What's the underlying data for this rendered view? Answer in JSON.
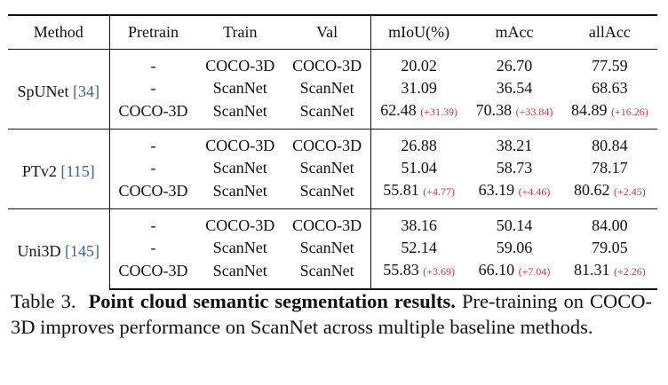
{
  "table": {
    "headers": [
      "Method",
      "Pretrain",
      "Train",
      "Val",
      "mIoU(%)",
      "mAcc",
      "allAcc"
    ],
    "groups": [
      {
        "method": "SpUNet",
        "cite": "[34]",
        "rows": [
          {
            "pretrain": "-",
            "train": "COCO-3D",
            "val": "COCO-3D",
            "miou": "20.02",
            "miou_delta": "",
            "macc": "26.70",
            "macc_delta": "",
            "allacc": "77.59",
            "allacc_delta": ""
          },
          {
            "pretrain": "-",
            "train": "ScanNet",
            "val": "ScanNet",
            "miou": "31.09",
            "miou_delta": "",
            "macc": "36.54",
            "macc_delta": "",
            "allacc": "68.63",
            "allacc_delta": ""
          },
          {
            "pretrain": "COCO-3D",
            "train": "ScanNet",
            "val": "ScanNet",
            "miou": "62.48",
            "miou_delta": "(+31.39)",
            "macc": "70.38",
            "macc_delta": "(+33.84)",
            "allacc": "84.89",
            "allacc_delta": "(+16.26)"
          }
        ]
      },
      {
        "method": "PTv2",
        "cite": "[115]",
        "rows": [
          {
            "pretrain": "-",
            "train": "COCO-3D",
            "val": "COCO-3D",
            "miou": "26.88",
            "miou_delta": "",
            "macc": "38.21",
            "macc_delta": "",
            "allacc": "80.84",
            "allacc_delta": ""
          },
          {
            "pretrain": "-",
            "train": "ScanNet",
            "val": "ScanNet",
            "miou": "51.04",
            "miou_delta": "",
            "macc": "58.73",
            "macc_delta": "",
            "allacc": "78.17",
            "allacc_delta": ""
          },
          {
            "pretrain": "COCO-3D",
            "train": "ScanNet",
            "val": "ScanNet",
            "miou": "55.81",
            "miou_delta": "(+4.77)",
            "macc": "63.19",
            "macc_delta": "(+4.46)",
            "allacc": "80.62",
            "allacc_delta": "(+2.45)"
          }
        ]
      },
      {
        "method": "Uni3D",
        "cite": "[145]",
        "rows": [
          {
            "pretrain": "-",
            "train": "COCO-3D",
            "val": "COCO-3D",
            "miou": "38.16",
            "miou_delta": "",
            "macc": "50.14",
            "macc_delta": "",
            "allacc": "84.00",
            "allacc_delta": ""
          },
          {
            "pretrain": "-",
            "train": "ScanNet",
            "val": "ScanNet",
            "miou": "52.14",
            "miou_delta": "",
            "macc": "59.06",
            "macc_delta": "",
            "allacc": "79.05",
            "allacc_delta": ""
          },
          {
            "pretrain": "COCO-3D",
            "train": "ScanNet",
            "val": "ScanNet",
            "miou": "55.83",
            "miou_delta": "(+3.69)",
            "macc": "66.10",
            "macc_delta": "(+7.04)",
            "allacc": "81.31",
            "allacc_delta": "(+2.26)"
          }
        ]
      }
    ]
  },
  "caption": {
    "label": "Table 3.",
    "title": "Point cloud semantic segmentation results.",
    "text": "Pre-training on COCO-3D improves performance on ScanNet across multiple baseline methods."
  },
  "colors": {
    "citation": "#3a5fa8",
    "delta": "#d8333a"
  }
}
